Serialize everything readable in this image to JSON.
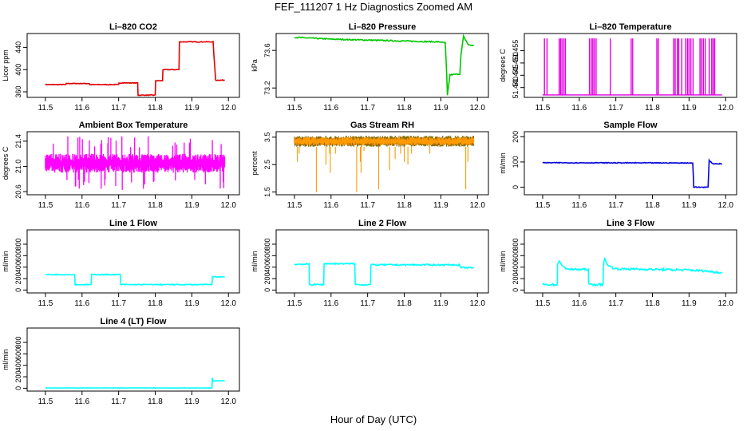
{
  "page": {
    "title": "FEF_111207  1 Hz Diagnostics Zoomed AM",
    "xlabel": "Hour of Day (UTC)"
  },
  "chart_data": [
    {
      "type": "line",
      "title": "Li–820 CO2",
      "ylabel": "Licor ppm",
      "xlim": [
        11.5,
        12.0
      ],
      "ylim": [
        350,
        465
      ],
      "xticks": [
        "11.5",
        "11.6",
        "11.7",
        "11.8",
        "11.9",
        "12.0"
      ],
      "yticks": [
        "360",
        "400",
        "440"
      ],
      "ytick_values": [
        360,
        400,
        440
      ],
      "color": "#e00000",
      "noise": 0.6,
      "series": [
        {
          "x": [
            11.5,
            11.556,
            11.557,
            11.62,
            11.621,
            11.7,
            11.701,
            11.752,
            11.753,
            11.8,
            11.801,
            11.82,
            11.821,
            11.865,
            11.866,
            11.958,
            11.965,
            11.99
          ],
          "values": [
            373,
            373,
            375,
            375,
            373,
            373,
            376,
            376,
            354,
            354,
            380,
            380,
            400,
            400,
            450,
            450,
            381,
            381
          ]
        }
      ]
    },
    {
      "type": "line",
      "title": "Li–820 Pressure",
      "ylabel": "kPa",
      "xlim": [
        11.5,
        12.0
      ],
      "ylim": [
        73.1,
        73.78
      ],
      "xticks": [
        "11.5",
        "11.6",
        "11.7",
        "11.8",
        "11.9",
        "12.0"
      ],
      "yticks": [
        "73.2",
        "73.6"
      ],
      "ytick_values": [
        73.2,
        73.6
      ],
      "color": "#00c800",
      "noise": 0.006,
      "series": [
        {
          "x": [
            11.5,
            11.6,
            11.7,
            11.8,
            11.9,
            11.912,
            11.916,
            11.918,
            11.925,
            11.952,
            11.955,
            11.962,
            11.975,
            11.99
          ],
          "values": [
            73.74,
            73.72,
            73.71,
            73.7,
            73.69,
            73.68,
            73.35,
            73.12,
            73.34,
            73.35,
            73.55,
            73.75,
            73.66,
            73.65
          ]
        }
      ]
    },
    {
      "type": "line",
      "title": "Li–820 Temperature",
      "ylabel": "degrees C",
      "xlim": [
        11.5,
        12.0
      ],
      "ylim": [
        51.436,
        51.462
      ],
      "xticks": [
        "11.5",
        "11.6",
        "11.7",
        "11.8",
        "11.9",
        "12.0"
      ],
      "yticks": [
        "51.440",
        "51.445",
        "51.450",
        "51.455"
      ],
      "ytick_values": [
        51.44,
        51.445,
        51.45,
        51.455
      ],
      "color": "#e000e0",
      "style": "spikes",
      "baseline": 51.437,
      "peak": 51.46,
      "spikes_x": [
        11.505,
        11.512,
        11.545,
        11.549,
        11.553,
        11.558,
        11.562,
        11.628,
        11.633,
        11.637,
        11.641,
        11.646,
        11.685,
        11.742,
        11.746,
        11.812,
        11.816,
        11.858,
        11.862,
        11.868,
        11.872,
        11.88,
        11.891,
        11.896,
        11.9,
        11.905,
        11.911,
        11.93,
        11.934,
        11.939,
        11.944,
        11.955,
        11.962,
        11.966,
        11.97
      ]
    },
    {
      "type": "line",
      "title": "Ambient Box Temperature",
      "ylabel": "degrees C",
      "xlim": [
        11.5,
        12.0
      ],
      "ylim": [
        20.55,
        21.55
      ],
      "xticks": [
        "11.5",
        "11.6",
        "11.7",
        "11.8",
        "11.9",
        "12.0"
      ],
      "yticks": [
        "20.6",
        "21.0",
        "21.4"
      ],
      "ytick_values": [
        20.6,
        21.0,
        21.4
      ],
      "color": "#ff00ff",
      "style": "band",
      "band": [
        20.9,
        21.2
      ],
      "spike_low": 20.6,
      "spike_high": 21.5
    },
    {
      "type": "line",
      "title": "Gas Stream RH",
      "ylabel": "percent",
      "xlim": [
        11.5,
        12.0
      ],
      "ylim": [
        1.4,
        3.7
      ],
      "xticks": [
        "11.5",
        "11.6",
        "11.7",
        "11.8",
        "11.9",
        "12.0"
      ],
      "yticks": [
        "1.5",
        "2.5",
        "3.5"
      ],
      "ytick_values": [
        1.5,
        2.5,
        3.5
      ],
      "color": "#ff9900",
      "color2": "#8a6a00",
      "style": "rh",
      "band": [
        3.15,
        3.55
      ],
      "dips_x": [
        11.508,
        11.513,
        11.56,
        11.586,
        11.596,
        11.598,
        11.612,
        11.67,
        11.68,
        11.682,
        11.69,
        11.73,
        11.76,
        11.775,
        11.79,
        11.8,
        11.81,
        11.82,
        11.87,
        11.968,
        11.974
      ],
      "dips_y": [
        2.6,
        2.9,
        1.5,
        2.5,
        2.9,
        2.2,
        2.9,
        1.5,
        2.6,
        2.2,
        3.0,
        1.6,
        2.3,
        2.7,
        2.9,
        2.6,
        2.5,
        2.9,
        2.9,
        1.6,
        2.6
      ]
    },
    {
      "type": "line",
      "title": "Sample Flow",
      "ylabel": "ml/min",
      "xlim": [
        11.5,
        12.0
      ],
      "ylim": [
        -30,
        220
      ],
      "xticks": [
        "11.5",
        "11.6",
        "11.7",
        "11.8",
        "11.9",
        "12.0"
      ],
      "yticks": [
        "0",
        "100",
        "200"
      ],
      "ytick_values": [
        0,
        100,
        200
      ],
      "color": "#0000dd",
      "noise": 1.5,
      "series": [
        {
          "x": [
            11.5,
            11.9,
            11.91,
            11.913,
            11.95,
            11.952,
            11.955,
            11.965,
            11.99
          ],
          "values": [
            97,
            96,
            96,
            0,
            0,
            0,
            105,
            93,
            93
          ]
        }
      ]
    },
    {
      "type": "line",
      "title": "Line 1 Flow",
      "ylabel": "ml/min",
      "xlim": [
        11.5,
        12.0
      ],
      "ylim": [
        -50,
        1050
      ],
      "xticks": [
        "11.5",
        "11.6",
        "11.7",
        "11.8",
        "11.9",
        "12.0"
      ],
      "yticks": [
        "0",
        "200",
        "400",
        "600",
        "800"
      ],
      "ytick_values": [
        0,
        200,
        400,
        600,
        800
      ],
      "color": "#00ffff",
      "noise": 8,
      "series": [
        {
          "x": [
            11.5,
            11.58,
            11.581,
            11.625,
            11.626,
            11.705,
            11.706,
            11.955,
            11.956,
            11.962,
            11.99
          ],
          "values": [
            270,
            270,
            95,
            95,
            270,
            270,
            95,
            95,
            230,
            230,
            230
          ]
        }
      ]
    },
    {
      "type": "line",
      "title": "Line 2 Flow",
      "ylabel": "ml/min",
      "xlim": [
        11.5,
        12.0
      ],
      "ylim": [
        -50,
        1050
      ],
      "xticks": [
        "11.5",
        "11.6",
        "11.7",
        "11.8",
        "11.9",
        "12.0"
      ],
      "yticks": [
        "0",
        "200",
        "400",
        "600",
        "800"
      ],
      "ytick_values": [
        0,
        200,
        400,
        600,
        800
      ],
      "color": "#00ffff",
      "noise": 12,
      "series": [
        {
          "x": [
            11.5,
            11.54,
            11.541,
            11.58,
            11.581,
            11.665,
            11.666,
            11.708,
            11.709,
            11.95,
            11.955,
            11.99
          ],
          "values": [
            450,
            450,
            95,
            95,
            460,
            460,
            95,
            95,
            440,
            440,
            390,
            390
          ]
        }
      ]
    },
    {
      "type": "line",
      "title": "Line 3 Flow",
      "ylabel": "ml/min",
      "xlim": [
        11.5,
        12.0
      ],
      "ylim": [
        -50,
        1050
      ],
      "xticks": [
        "11.5",
        "11.6",
        "11.7",
        "11.8",
        "11.9",
        "12.0"
      ],
      "yticks": [
        "0",
        "200",
        "400",
        "600",
        "800"
      ],
      "ytick_values": [
        0,
        200,
        400,
        600,
        800
      ],
      "color": "#00ffff",
      "noise": 18,
      "series": [
        {
          "x": [
            11.5,
            11.54,
            11.541,
            11.545,
            11.555,
            11.575,
            11.625,
            11.626,
            11.665,
            11.666,
            11.67,
            11.68,
            11.7,
            11.9,
            11.95,
            11.99
          ],
          "values": [
            95,
            95,
            450,
            520,
            400,
            360,
            360,
            95,
            95,
            450,
            540,
            420,
            370,
            350,
            330,
            300
          ]
        }
      ]
    },
    {
      "type": "line",
      "title": "Line 4 (LT) Flow",
      "ylabel": "ml/min",
      "xlim": [
        11.5,
        12.0
      ],
      "ylim": [
        -50,
        1050
      ],
      "xticks": [
        "11.5",
        "11.6",
        "11.7",
        "11.8",
        "11.9",
        "12.0"
      ],
      "yticks": [
        "0",
        "200",
        "400",
        "600",
        "800"
      ],
      "ytick_values": [
        0,
        200,
        400,
        600,
        800
      ],
      "color": "#00ffff",
      "noise": 3,
      "series": [
        {
          "x": [
            11.5,
            11.955,
            11.956,
            11.958,
            11.965,
            11.99
          ],
          "values": [
            5,
            5,
            180,
            120,
            130,
            130
          ]
        }
      ]
    }
  ]
}
